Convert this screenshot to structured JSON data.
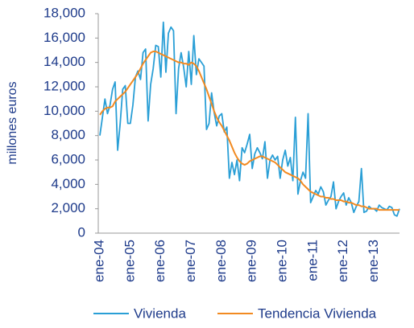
{
  "chart_data": {
    "type": "line",
    "y_label": "millones euros",
    "categories": [
      "ene-04",
      null,
      null,
      null,
      null,
      null,
      null,
      null,
      null,
      null,
      null,
      null,
      "ene-05",
      null,
      null,
      null,
      null,
      null,
      null,
      null,
      null,
      null,
      null,
      null,
      "ene-06",
      null,
      null,
      null,
      null,
      null,
      null,
      null,
      null,
      null,
      null,
      null,
      "ene-07",
      null,
      null,
      null,
      null,
      null,
      null,
      null,
      null,
      null,
      null,
      null,
      "ene-08",
      null,
      null,
      null,
      null,
      null,
      null,
      null,
      null,
      null,
      null,
      null,
      "ene-09",
      null,
      null,
      null,
      null,
      null,
      null,
      null,
      null,
      null,
      null,
      null,
      "ene-10",
      null,
      null,
      null,
      null,
      null,
      null,
      null,
      null,
      null,
      null,
      null,
      "ene-11",
      null,
      null,
      null,
      null,
      null,
      null,
      null,
      null,
      null,
      null,
      null,
      "ene-12",
      null,
      null,
      null,
      null,
      null,
      null,
      null,
      null,
      null,
      null,
      null,
      "ene-13",
      null,
      null,
      null,
      null,
      null,
      null,
      null,
      null,
      null,
      null
    ],
    "series": [
      {
        "name": "Vivienda",
        "color": "#2a9fd6",
        "values": [
          8000,
          9500,
          11000,
          9800,
          10500,
          11800,
          12400,
          6800,
          9000,
          11800,
          12100,
          9000,
          9000,
          10500,
          12800,
          13300,
          12600,
          14800,
          15100,
          9200,
          12200,
          13500,
          15400,
          15300,
          12800,
          17300,
          13200,
          16400,
          16900,
          16600,
          9800,
          13500,
          14800,
          13600,
          12000,
          14900,
          12200,
          16200,
          13000,
          14300,
          14000,
          13700,
          8500,
          9000,
          11500,
          9900,
          8800,
          9600,
          9800,
          8300,
          8700,
          4500,
          5800,
          4800,
          6000,
          4300,
          7000,
          6600,
          7300,
          8100,
          5300,
          6500,
          7000,
          6600,
          6100,
          7500,
          4500,
          6000,
          6400,
          6000,
          6300,
          4500,
          6000,
          6800,
          5500,
          6200,
          4300,
          9500,
          3200,
          4300,
          5000,
          4500,
          9800,
          2500,
          3000,
          3500,
          3200,
          3800,
          3400,
          2300,
          2700,
          3000,
          4200,
          2000,
          2600,
          3000,
          3300,
          2300,
          2900,
          2500,
          1700,
          2200,
          2600,
          5300,
          1700,
          1800,
          2200,
          2000,
          2000,
          1800,
          2300,
          2100,
          2000,
          1900,
          2200,
          2100,
          1500,
          1400,
          2000
        ]
      },
      {
        "name": "Tendencia Vivienda",
        "color": "#f28a21",
        "values": [
          9700,
          10000,
          10200,
          10300,
          10300,
          10400,
          10800,
          11000,
          11200,
          11400,
          11600,
          11900,
          12200,
          12500,
          12800,
          13100,
          13500,
          13900,
          14200,
          14500,
          14800,
          14900,
          14900,
          14800,
          14700,
          14600,
          14500,
          14400,
          14300,
          14200,
          14100,
          14000,
          14000,
          13900,
          13900,
          13800,
          14000,
          13900,
          13700,
          13300,
          12800,
          12300,
          11800,
          11200,
          10600,
          10000,
          9500,
          9100,
          8800,
          8400,
          8000,
          7600,
          7100,
          6600,
          6200,
          5900,
          5700,
          5600,
          5700,
          5900,
          6000,
          6100,
          6200,
          6300,
          6300,
          6200,
          6100,
          6000,
          5900,
          5800,
          5600,
          5400,
          5200,
          5000,
          4900,
          4800,
          4700,
          4600,
          4500,
          4300,
          4000,
          3800,
          3600,
          3400,
          3300,
          3200,
          3100,
          3000,
          3000,
          2900,
          2900,
          2800,
          2800,
          2700,
          2700,
          2700,
          2600,
          2600,
          2500,
          2500,
          2400,
          2300,
          2300,
          2200,
          2200,
          2100,
          2000,
          2000,
          2000,
          2000,
          1900,
          1900,
          1900,
          1900,
          1900,
          1900,
          1900,
          1900,
          1900
        ]
      }
    ],
    "ylim": [
      0,
      18000
    ],
    "yticks": [
      0,
      {
        "value": 2000,
        "label": "2,000"
      },
      {
        "value": 4000,
        "label": "4,000"
      },
      {
        "value": 6000,
        "label": "6,000"
      },
      {
        "value": 8000,
        "label": "8,000"
      },
      {
        "value": 10000,
        "label": "10,000"
      },
      {
        "value": 12000,
        "label": "12,000"
      },
      {
        "value": 14000,
        "label": "14,000"
      },
      {
        "value": 16000,
        "label": "16,000"
      },
      {
        "value": 18000,
        "label": "18,000"
      }
    ],
    "grid": false,
    "legend": "bottom"
  }
}
